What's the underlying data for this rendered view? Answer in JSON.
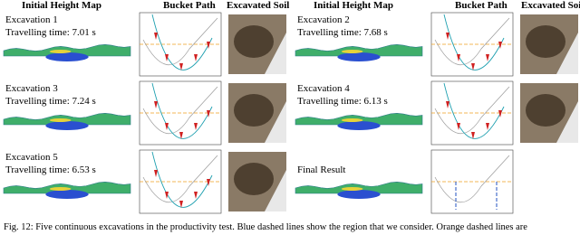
{
  "headers": [
    "Initial Height Map",
    "Bucket Path",
    "Excavated Soil",
    "Initial Height Map",
    "Bucket Path",
    "Excavated Soil"
  ],
  "panels": [
    {
      "title": "Excavation 1",
      "time": "Travelling time: 7.01 s"
    },
    {
      "title": "Excavation 2",
      "time": "Travelling time: 7.68 s"
    },
    {
      "title": "Excavation 3",
      "time": "Travelling time: 7.24 s"
    },
    {
      "title": "Excavation 4",
      "time": "Travelling time: 6.13 s"
    },
    {
      "title": "Excavation 5",
      "time": "Travelling time: 6.53 s"
    }
  ],
  "final": {
    "title": "Final Result"
  },
  "caption": "Fig. 12: Five continuous excavations in the productivity test. Blue dashed lines show the region that we consider. Orange dashed lines are"
}
